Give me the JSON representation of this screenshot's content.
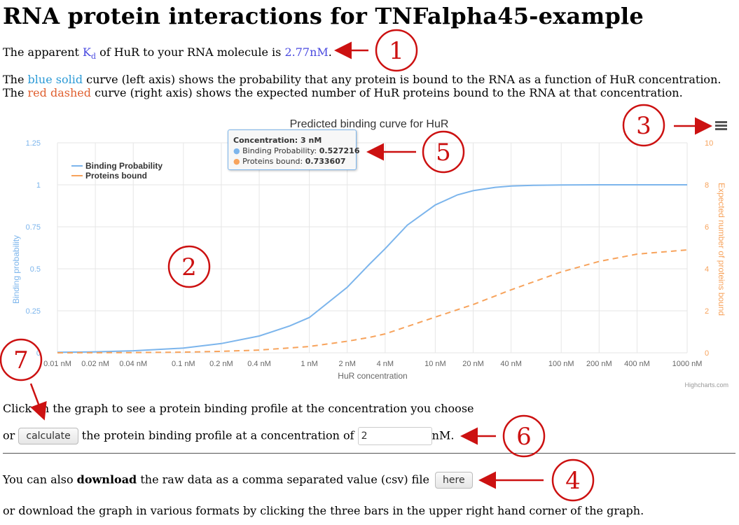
{
  "page": {
    "title": "RNA protein interactions for TNFalpha45-example",
    "kd_prefix": "The apparent ",
    "kd_symbol": "K",
    "kd_sub": "d",
    "kd_middle": " of HuR to your RNA molecule is ",
    "kd_value": "2.77nM",
    "kd_suffix": ".",
    "desc1_prefix": "The ",
    "desc1_curve": "blue solid",
    "desc1_suffix": " curve (left axis) shows the probability that any protein is bound to the RNA as a function of HuR concentration.",
    "desc2_prefix": "The ",
    "desc2_curve": "red dashed",
    "desc2_suffix": " curve (right axis) shows the expected number of HuR proteins bound to the RNA at that concentration.",
    "click_text": "Click on the graph to see a protein binding profile at the concentration you choose",
    "or_text": "or",
    "calculate_label": "calculate",
    "calc_middle": "the protein binding profile at a concentration of",
    "concentration_value": "2",
    "nm_text": "nM.",
    "download_prefix": "You can also ",
    "download_bold": "download",
    "download_suffix": " the raw data as a comma separated value (csv) file",
    "here_label": "here",
    "footer_text": "or download the graph in various formats by clicking the three bars in the upper right hand corner of the graph."
  },
  "annotations": [
    "1",
    "2",
    "3",
    "4",
    "5",
    "6",
    "7"
  ],
  "tooltip": {
    "header": "Concentration: 3 nM",
    "s1_label": "Binding Probability: ",
    "s1_value": "0.527216",
    "s2_label": "Proteins bound: ",
    "s2_value": "0.733607"
  },
  "icons": {
    "menu": "hamburger-menu-icon",
    "arrow": "red-arrow-icon"
  },
  "colors": {
    "blue_series": "#7cb5ec",
    "orange_series": "#f7a35c",
    "annotation_red": "#cc1111",
    "link_blue": "#4a4ae0"
  },
  "chart_data": {
    "type": "line",
    "title": "Predicted binding curve for HuR",
    "xlabel": "HuR concentration",
    "ylabel": "Binding probability",
    "ylabel_right": "Expected number of proteins bound",
    "x_scale": "log",
    "x_tick_values": [
      0.01,
      0.02,
      0.04,
      0.1,
      0.2,
      0.4,
      1,
      2,
      4,
      10,
      20,
      40,
      100,
      200,
      400,
      1000
    ],
    "x_tick_labels": [
      "0.01 nM",
      "0.02 nM",
      "0.04 nM",
      "0.1 nM",
      "0.2 nM",
      "0.4 nM",
      "1 nM",
      "2 nM",
      "4 nM",
      "10 nM",
      "20 nM",
      "40 nM",
      "100 nM",
      "200 nM",
      "400 nM",
      "1000 nM"
    ],
    "ylim": [
      0,
      1.25
    ],
    "y_ticks": [
      0,
      0.25,
      0.5,
      0.75,
      1,
      1.25
    ],
    "y_tick_labels": [
      "0",
      "0.25",
      "0.5",
      "0.75",
      "1",
      "1.25"
    ],
    "ylim_right": [
      0,
      10
    ],
    "y_ticks_right": [
      0,
      2,
      4,
      6,
      8,
      10
    ],
    "legend_position": "top-left",
    "credits": "Highcharts.com",
    "series": [
      {
        "name": "Binding Probability",
        "axis": "left",
        "x": [
          0.01,
          0.02,
          0.04,
          0.1,
          0.2,
          0.4,
          0.7,
          1,
          2,
          3,
          4,
          6,
          10,
          15,
          20,
          30,
          40,
          60,
          100,
          200,
          400,
          1000
        ],
        "values": [
          0.003,
          0.006,
          0.012,
          0.028,
          0.055,
          0.1,
          0.16,
          0.21,
          0.39,
          0.527,
          0.62,
          0.76,
          0.88,
          0.94,
          0.965,
          0.985,
          0.993,
          0.997,
          0.999,
          1.0,
          1.0,
          1.0
        ]
      },
      {
        "name": "Proteins bound",
        "axis": "right",
        "x": [
          0.01,
          0.04,
          0.1,
          0.2,
          0.4,
          1,
          2,
          3,
          4,
          10,
          20,
          40,
          100,
          200,
          400,
          1000
        ],
        "values": [
          0.0,
          0.01,
          0.03,
          0.07,
          0.13,
          0.3,
          0.55,
          0.734,
          0.9,
          1.7,
          2.3,
          3.0,
          3.85,
          4.35,
          4.7,
          4.9
        ]
      }
    ]
  }
}
